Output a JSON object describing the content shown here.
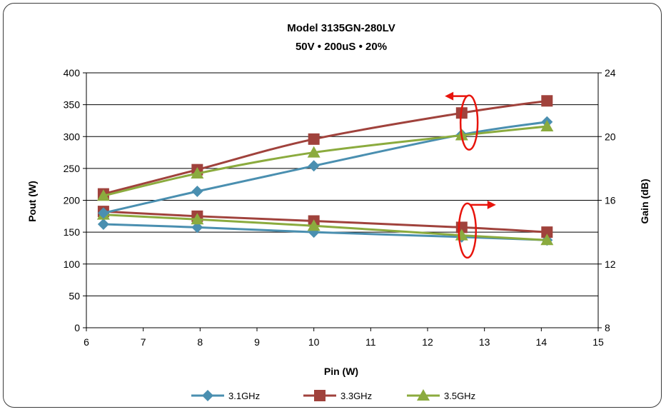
{
  "chart_data": {
    "type": "line",
    "title": "Model 3135GN-280LV",
    "subtitle": "50V • 200uS • 20%",
    "xlabel": "Pin (W)",
    "ylabel_left": "Pout (W)",
    "ylabel_right": "Gain (dB)",
    "xlim": [
      6,
      15
    ],
    "xticks": [
      "6",
      "7",
      "8",
      "9",
      "10",
      "11",
      "12",
      "13",
      "14",
      "15"
    ],
    "ylim_left": [
      0,
      400
    ],
    "yticks_left": [
      "0",
      "50",
      "100",
      "150",
      "200",
      "250",
      "300",
      "350",
      "400"
    ],
    "ylim_right": [
      8,
      24
    ],
    "yticks_right": [
      "8",
      "12",
      "16",
      "20",
      "24"
    ],
    "grid": "horizontal",
    "legend_position": "bottom",
    "x": [
      6.3,
      7.95,
      10.0,
      12.6,
      14.1
    ],
    "series": [
      {
        "name": "3.1GHz",
        "axis": "left",
        "quantity": "Pout",
        "color": "#4a8fb0",
        "marker": "diamond",
        "values": [
          180,
          214,
          254,
          303,
          323
        ]
      },
      {
        "name": "3.3GHz",
        "axis": "left",
        "quantity": "Pout",
        "color": "#a0423c",
        "marker": "square",
        "values": [
          210,
          248,
          296,
          337,
          356
        ]
      },
      {
        "name": "3.5GHz",
        "axis": "left",
        "quantity": "Pout",
        "color": "#8bab3e",
        "marker": "triangle",
        "values": [
          207,
          242,
          275,
          302,
          316
        ]
      },
      {
        "name": "3.1GHz",
        "axis": "right",
        "quantity": "Gain",
        "color": "#4a8fb0",
        "marker": "diamond",
        "values": [
          14.5,
          14.3,
          14.0,
          13.7,
          13.5
        ]
      },
      {
        "name": "3.3GHz",
        "axis": "right",
        "quantity": "Gain",
        "color": "#a0423c",
        "marker": "square",
        "values": [
          15.3,
          15.0,
          14.7,
          14.3,
          14.0
        ]
      },
      {
        "name": "3.5GHz",
        "axis": "right",
        "quantity": "Gain",
        "color": "#8bab3e",
        "marker": "triangle",
        "values": [
          15.1,
          14.8,
          14.4,
          13.8,
          13.5
        ]
      }
    ],
    "legend": [
      {
        "label": "3.1GHz",
        "color": "#4a8fb0",
        "marker": "diamond"
      },
      {
        "label": "3.3GHz",
        "color": "#a0423c",
        "marker": "square"
      },
      {
        "label": "3.5GHz",
        "color": "#8bab3e",
        "marker": "triangle"
      }
    ],
    "annotations": [
      {
        "type": "ellipse-arrow",
        "points_to": "left-axis",
        "group": "Pout",
        "color": "#e8140c"
      },
      {
        "type": "ellipse-arrow",
        "points_to": "right-axis",
        "group": "Gain",
        "color": "#e8140c"
      }
    ]
  }
}
